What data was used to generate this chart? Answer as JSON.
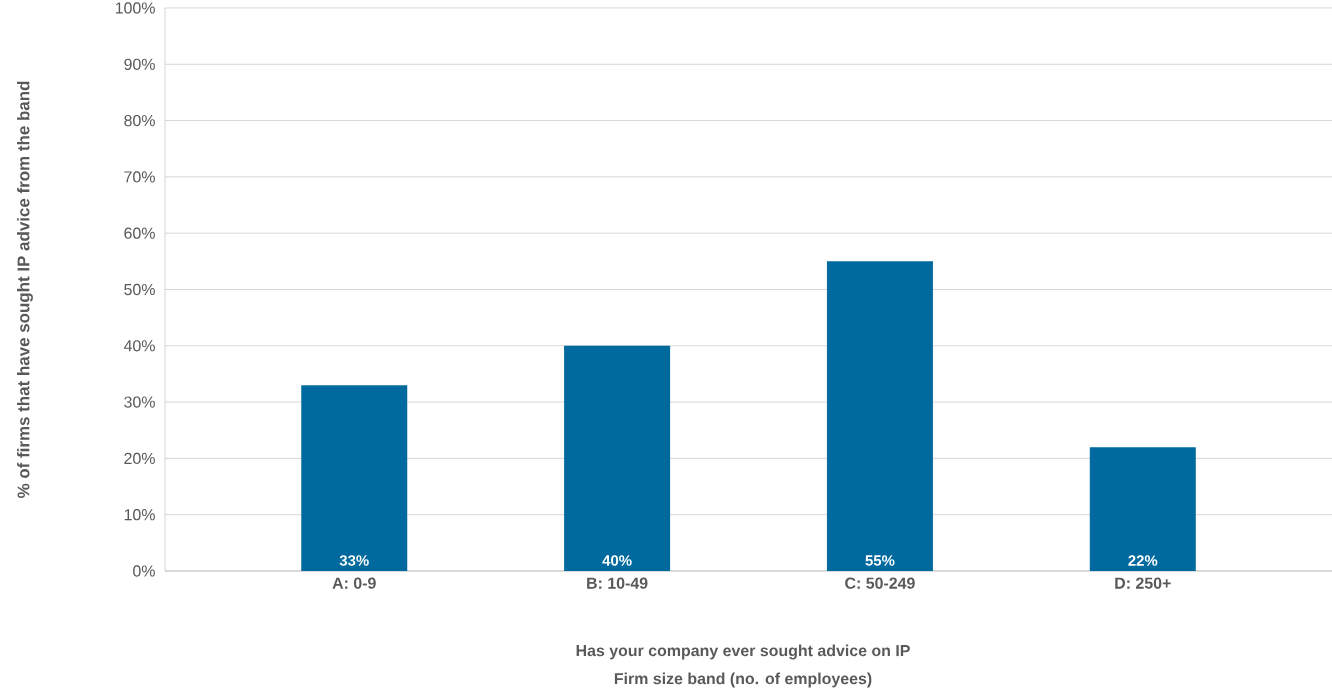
{
  "chart_data": {
    "type": "bar",
    "categories": [
      "A: 0-9",
      "B: 10-49",
      "C: 50-249",
      "D: 250+"
    ],
    "values": [
      33,
      40,
      55,
      22
    ],
    "color": "#006a9e",
    "value_labels": [
      "33%",
      "40%",
      "55%",
      "22%"
    ],
    "ylim": [
      0,
      100
    ],
    "yticks": [
      {
        "value": 0,
        "label": "0%"
      },
      {
        "value": 10,
        "label": "10%"
      },
      {
        "value": 20,
        "label": "20%"
      },
      {
        "value": 30,
        "label": "30%"
      },
      {
        "value": 40,
        "label": "40%"
      },
      {
        "value": 50,
        "label": "50%"
      },
      {
        "value": 60,
        "label": "60%"
      },
      {
        "value": 70,
        "label": "70%"
      },
      {
        "value": 80,
        "label": "80%"
      },
      {
        "value": 90,
        "label": "90%"
      },
      {
        "value": 100,
        "label": "100%"
      }
    ],
    "ylabel": "% of firms that have sought IP advice from the band",
    "annotations": [
      "Has your company ever sought advice on IP",
      "Firm size band (no. of employees)"
    ],
    "grid": "y"
  }
}
